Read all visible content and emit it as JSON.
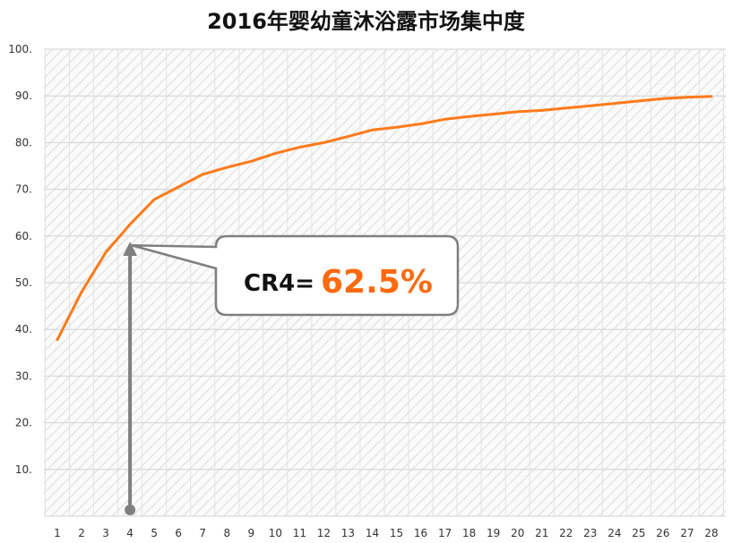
{
  "chart_data": {
    "type": "line",
    "title": "2016年婴幼童沐浴露市场集中度",
    "x": [
      1,
      2,
      3,
      4,
      5,
      6,
      7,
      8,
      9,
      10,
      11,
      12,
      13,
      14,
      15,
      16,
      17,
      18,
      19,
      20,
      21,
      22,
      23,
      24,
      25,
      26,
      27,
      28
    ],
    "series": [
      {
        "color": "#FF7A1A",
        "values": [
          37.8,
          48.0,
          56.5,
          62.5,
          67.8,
          70.5,
          73.2,
          74.7,
          76.0,
          77.7,
          79.0,
          80.0,
          81.3,
          82.7,
          83.3,
          84.0,
          85.0,
          85.6,
          86.1,
          86.6,
          86.9,
          87.4,
          87.9,
          88.4,
          88.9,
          89.4,
          89.7,
          89.9
        ]
      }
    ],
    "yticks": [
      "",
      "10.",
      "20.",
      "30.",
      "40.",
      "50.",
      "60.",
      "70.",
      "80.",
      "90.",
      "100."
    ],
    "ylim": [
      0,
      100
    ],
    "xlim": [
      1,
      28
    ],
    "grid": true,
    "annotation": {
      "label": "CR4=",
      "value": "62.5%",
      "label_color": "#111111",
      "value_color": "#FF6A10",
      "arrow_x": 4,
      "arrow_y_from": 0,
      "arrow_y_to": 58,
      "arrow_color": "#7F7F7F"
    }
  }
}
